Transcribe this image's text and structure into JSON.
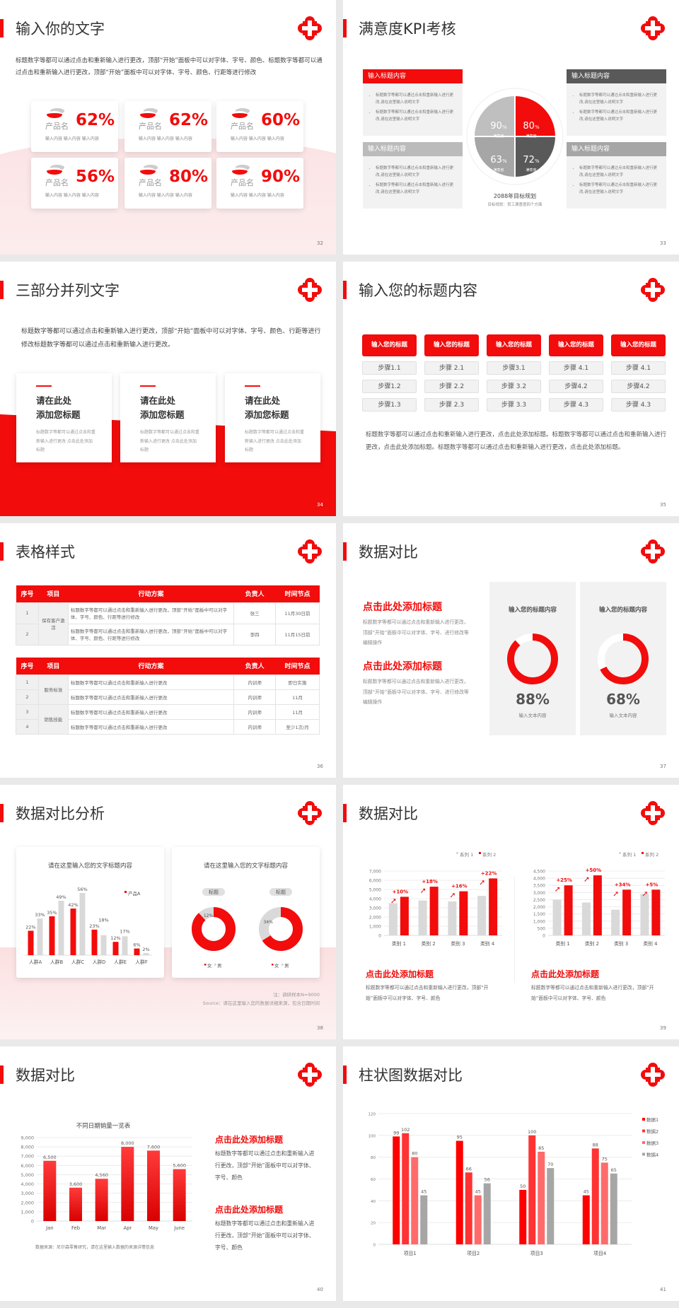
{
  "colors": {
    "accent": "#f20c0c",
    "dark_gray": "#595959",
    "mid_gray": "#a6a6a6",
    "light_gray": "#d9d9d9"
  },
  "logo_icon": "red-cross-flower-logo",
  "s32": {
    "title": "输入你的文字",
    "page": "32",
    "body": "标题数字等都可以通过点击和重新输入进行更改，顶部“开始”面板中可以对字体、字号、颜色、标题数字等都可以通过点击和重新输入进行更改，顶部“开始”面板中可以对字体、字号、颜色、行距等进行修改",
    "cards": [
      {
        "name": "产品名",
        "pct": "62%",
        "sub": "输入内容 输入内容 输入内容"
      },
      {
        "name": "产品名",
        "pct": "62%",
        "sub": "输入内容 输入内容 输入内容"
      },
      {
        "name": "产品名",
        "pct": "60%",
        "sub": "输入内容 输入内容 输入内容"
      },
      {
        "name": "产品名",
        "pct": "56%",
        "sub": "输入内容 输入内容 输入内容"
      },
      {
        "name": "产品名",
        "pct": "80%",
        "sub": "输入内容 输入内容 输入内容"
      },
      {
        "name": "产品名",
        "pct": "90%",
        "sub": "输入内容 输入内容 输入内容"
      }
    ]
  },
  "s33": {
    "title": "满意度KPI考核",
    "page": "33",
    "boxes": [
      {
        "title": "输入标题内容",
        "bullets": [
          "标题数字等都可以通过点击和重新输入进行更改,请在这里输入说明文字",
          "标题数字等都可以通过点击和重新输入进行更改,请在这里输入说明文字"
        ]
      },
      {
        "title": "输入标题内容",
        "bullets": [
          "标题数字等都可以通过点击和重新输入进行更改,请在这里输入说明文字",
          "标题数字等都可以通过点击和重新输入进行更改,请在这里输入说明文字"
        ]
      },
      {
        "title": "输入标题内容",
        "bullets": [
          "标题数字等都可以通过点击和重新输入进行更改,请在这里输入说明文字",
          "标题数字等都可以通过点击和重新输入进行更改,请在这里输入说明文字"
        ]
      },
      {
        "title": "输入标题内容",
        "bullets": [
          "标题数字等都可以通过点击和重新输入进行更改,请在这里输入说明文字",
          "标题数字等都可以通过点击和重新输入进行更改,请在这里输入说明文字"
        ]
      }
    ],
    "quadrants": [
      {
        "value": "90",
        "unit": "%",
        "label": "满意度"
      },
      {
        "value": "80",
        "unit": "%",
        "label": "满意度"
      },
      {
        "value": "63",
        "unit": "%",
        "label": "满意度"
      },
      {
        "value": "72",
        "unit": "%",
        "label": "满意度"
      }
    ],
    "center_title": "2088年目标规划",
    "center_sub": "目标规划：员工满意度四个方面"
  },
  "s34": {
    "title": "三部分并列文字",
    "page": "34",
    "body": "标题数字等都可以通过点击和重新输入进行更改，顶部“开始”面板中可以对字体、字号、颜色、行距等进行修改标题数字等都可以通过点击和重新输入进行更改。",
    "cards": [
      {
        "t1": "请在此处",
        "t2": "添加您标题",
        "text": "标题数字等都可以通过点击和重新输入进行更改 点击此处添加标题"
      },
      {
        "t1": "请在此处",
        "t2": "添加您标题",
        "text": "标题数字等都可以通过点击和重新输入进行更改 点击此处添加标题"
      },
      {
        "t1": "请在此处",
        "t2": "添加您标题",
        "text": "标题数字等都可以通过点击和重新输入进行更改 点击此处添加标题"
      }
    ]
  },
  "s35": {
    "title": "输入您的标题内容",
    "page": "35",
    "columns": [
      {
        "header": "输入您的标题",
        "steps": [
          "步骤1.1",
          "步骤1.2",
          "步骤1.3"
        ]
      },
      {
        "header": "输入您的标题",
        "steps": [
          "步骤 2.1",
          "步骤 2.2",
          "步骤 2.3"
        ]
      },
      {
        "header": "输入您的标题",
        "steps": [
          "步骤3.1",
          "步骤 3.2",
          "步骤 3.3"
        ]
      },
      {
        "header": "输入您的标题",
        "steps": [
          "步骤 4.1",
          "步骤4.2",
          "步骤 4.3"
        ]
      },
      {
        "header": "输入您的标题",
        "steps": [
          "步骤 4.1",
          "步骤4.2",
          "步骤 4.3"
        ]
      }
    ],
    "body": "标题数字等都可以通过点击和重新输入进行更改，点击此处添加标题。标题数字等都可以通过点击和重新输入进行更改，点击此处添加标题。标题数字等都可以通过点击和重新输入进行更改，点击此处添加标题。"
  },
  "s36": {
    "title": "表格样式",
    "page": "36",
    "headers": [
      "序号",
      "项目",
      "行动方案",
      "负责人",
      "时间节点"
    ],
    "table1": {
      "group": "保有客户激活",
      "rows": [
        {
          "no": "1",
          "plan": "标题数字等都可以通过点击和重新输入进行更改，顶部“开始”面板中可以对字体、字号、颜色、行距等进行修改",
          "owner": "张三",
          "time": "11月30日前"
        },
        {
          "no": "2",
          "plan": "标题数字等都可以通过点击和重新输入进行更改，顶部“开始”面板中可以对字体、字号、颜色、行距等进行修改",
          "owner": "李四",
          "time": "11月15日前"
        }
      ]
    },
    "table2": {
      "groups": [
        "服务标准",
        "销售技能"
      ],
      "rows": [
        {
          "no": "1",
          "plan": "标题数字等都可以通过点击和重新输入进行更改",
          "owner": "内训师",
          "time": "即日实施"
        },
        {
          "no": "2",
          "plan": "标题数字等都可以通过点击和重新输入进行更改",
          "owner": "内训师",
          "time": "11月"
        },
        {
          "no": "3",
          "plan": "标题数字等都可以通过点击和重新输入进行更改",
          "owner": "内训师",
          "time": "11月"
        },
        {
          "no": "4",
          "plan": "标题数字等都可以通过点击和重新输入进行更改",
          "owner": "内训师",
          "time": "至少1次/月"
        }
      ]
    }
  },
  "s37": {
    "title": "数据对比",
    "page": "37",
    "blocks": [
      {
        "heading": "点击此处添加标题",
        "text": "标题数字等都可以通过点击和重新输入进行更改，顶部“开始”面板中可以对字体、字号、进行修改等编辑操作"
      },
      {
        "heading": "点击此处添加标题",
        "text": "标题数字等都可以通过点击和重新输入进行更改，顶部“开始”面板中可以对字体、字号、进行修改等编辑操作"
      }
    ],
    "cards": [
      {
        "title": "输入您的标题内容",
        "value": 88,
        "pct": "88%",
        "label": "输入文本内容"
      },
      {
        "title": "输入您的标题内容",
        "value": 68,
        "pct": "68%",
        "label": "输入文本内容"
      }
    ]
  },
  "s38": {
    "title": "数据对比分析",
    "page": "38",
    "card_titles": [
      "请在这里输入您的文字标题内容",
      "请在这里输入您的文字标题内容"
    ],
    "note": "注：调研样本N=9000",
    "source": "Source：请在这里输入您的数据详细来源，包含日期时间"
  },
  "s39": {
    "title": "数据对比",
    "page": "39",
    "blocks": [
      {
        "heading": "点击此处添加标题",
        "text": "标题数字等都可以通过点击和重新输入进行更改，顶部“开始”面板中可以对字体、字号、颜色"
      },
      {
        "heading": "点击此处添加标题",
        "text": "标题数字等都可以通过点击和重新输入进行更改，顶部“开始”面板中可以对字体、字号、颜色"
      }
    ]
  },
  "s40": {
    "title": "数据对比",
    "page": "40",
    "source": "数据来源：尼尔森零售研究，请在这里输入数据的来源详情信息",
    "blocks": [
      {
        "heading": "点击此处添加标题",
        "text": "标题数字等都可以通过点击和重新输入进行更改，顶部“开始”面板中可以对字体、字号、颜色"
      },
      {
        "heading": "点击此处添加标题",
        "text": "标题数字等都可以通过点击和重新输入进行更改，顶部“开始”面板中可以对字体、字号、颜色"
      }
    ]
  },
  "s41": {
    "title": "柱状图数据对比",
    "page": "41"
  },
  "chart_data": [
    {
      "id": "s38-bar",
      "type": "bar",
      "categories": [
        "人群A",
        "人群B",
        "人群C",
        "人群D",
        "人群E",
        "人群F"
      ],
      "series": [
        {
          "name": "产品A",
          "values": [
            22,
            35,
            42,
            23,
            12,
            6
          ],
          "color": "#f20c0c"
        },
        {
          "values": [
            33,
            49,
            56,
            18,
            17,
            2
          ],
          "color": "#d9d9d9"
        }
      ],
      "data_labels": true,
      "unit": "%",
      "legend": "top-right",
      "grid": false
    },
    {
      "id": "s38-donut-1",
      "type": "pie",
      "label": "标题",
      "slices": [
        {
          "name": "女",
          "value": 88,
          "color": "#f20c0c"
        },
        {
          "name": "男",
          "value": 12,
          "color": "#d9d9d9"
        }
      ],
      "visible_labels": [
        "12%"
      ]
    },
    {
      "id": "s38-donut-2",
      "type": "pie",
      "label": "标题",
      "slices": [
        {
          "name": "女",
          "value": 66,
          "color": "#f20c0c"
        },
        {
          "name": "男",
          "value": 34,
          "color": "#d9d9d9"
        }
      ],
      "visible_labels": [
        "34%"
      ]
    },
    {
      "id": "s39-left",
      "type": "bar",
      "categories": [
        "类别 1",
        "类别 2",
        "类别 3",
        "类别 4"
      ],
      "ylim": [
        0,
        7000
      ],
      "ytick_step": 1000,
      "grid": true,
      "legend": "top-right",
      "series": [
        {
          "name": "系列 1",
          "values": [
            3500,
            3800,
            3700,
            4300
          ],
          "color": "#d9d9d9"
        },
        {
          "name": "系列 2",
          "values": [
            4200,
            5300,
            4800,
            6200
          ],
          "color": "#f20c0c"
        }
      ],
      "annotations": [
        "+10%",
        "+18%",
        "+16%",
        "+22%"
      ]
    },
    {
      "id": "s39-right",
      "type": "bar",
      "categories": [
        "类别 1",
        "类别 2",
        "类别 3",
        "类别 4"
      ],
      "ylim": [
        0,
        4500
      ],
      "ytick_step": 500,
      "grid": true,
      "legend": "top-right",
      "series": [
        {
          "name": "系列 1",
          "values": [
            2500,
            2300,
            1800,
            2900
          ],
          "color": "#d9d9d9"
        },
        {
          "name": "系列 2",
          "values": [
            3500,
            4200,
            3200,
            3200
          ],
          "color": "#f20c0c"
        }
      ],
      "annotations": [
        "+25%",
        "+50%",
        "+34%",
        "+5%"
      ]
    },
    {
      "id": "s40-bar",
      "type": "bar",
      "title": "不同日期销量一览表",
      "categories": [
        "Jan",
        "Feb",
        "Mar",
        "Apr",
        "May",
        "June"
      ],
      "ylim": [
        0,
        9000
      ],
      "ytick_step": 1000,
      "grid": true,
      "series": [
        {
          "values": [
            6500,
            3600,
            4560,
            8000,
            7600,
            5600
          ],
          "color": "#f20c0c"
        }
      ],
      "data_labels": true
    },
    {
      "id": "s41-bar",
      "type": "bar",
      "categories": [
        "项目1",
        "项目2",
        "项目3",
        "项目4"
      ],
      "ylim": [
        0,
        120
      ],
      "ytick_step": 20,
      "grid": true,
      "legend": "right",
      "data_labels": true,
      "series": [
        {
          "name": "数据1",
          "values": [
            99,
            95,
            50,
            45
          ],
          "color": "#ff0000"
        },
        {
          "name": "数据2",
          "values": [
            102,
            66,
            100,
            88
          ],
          "color": "#ff3333"
        },
        {
          "name": "数据3",
          "values": [
            80,
            45,
            85,
            75
          ],
          "color": "#ff6b6b"
        },
        {
          "name": "数据4",
          "values": [
            45,
            56,
            70,
            65
          ],
          "color": "#a6a6a6"
        }
      ]
    }
  ]
}
